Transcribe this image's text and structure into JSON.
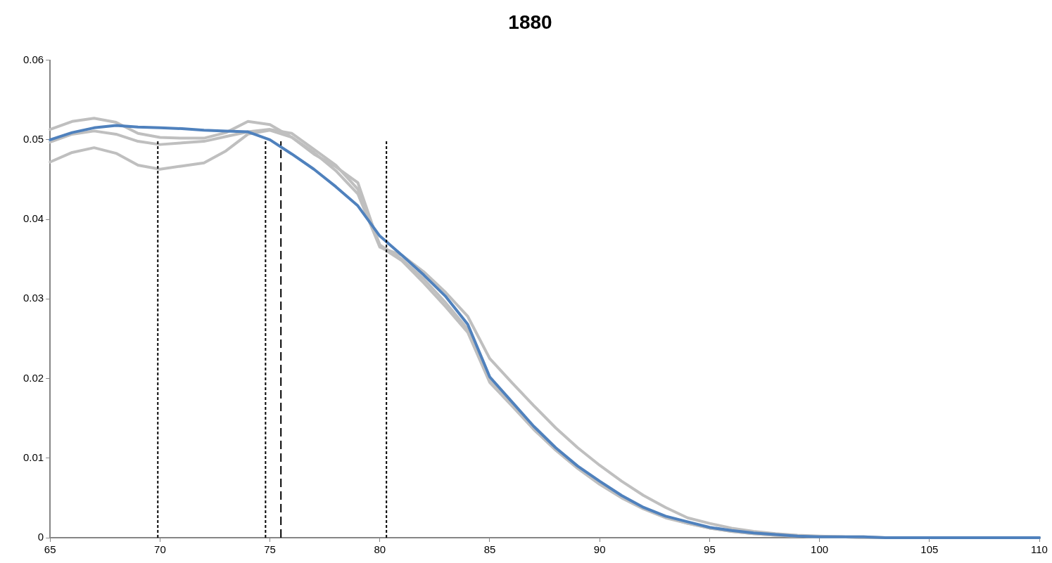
{
  "chart_data": {
    "type": "line",
    "title": "1880",
    "x": [
      65,
      66,
      67,
      68,
      69,
      70,
      71,
      72,
      73,
      74,
      75,
      76,
      77,
      78,
      79,
      80,
      81,
      82,
      83,
      84,
      85,
      86,
      87,
      88,
      89,
      90,
      91,
      92,
      93,
      94,
      95,
      96,
      97,
      98,
      99,
      100,
      101,
      102,
      103,
      104,
      105,
      106,
      107,
      108,
      109,
      110
    ],
    "series": [
      {
        "color": "#bfbfbf",
        "values": [
          0.0513,
          0.0523,
          0.0527,
          0.0522,
          0.0508,
          0.0503,
          0.0502,
          0.0502,
          0.0509,
          0.0523,
          0.0519,
          0.0503,
          0.0484,
          0.0461,
          0.0432,
          0.0365,
          0.0355,
          0.0334,
          0.0308,
          0.0278,
          0.0225,
          0.0195,
          0.0166,
          0.0138,
          0.0113,
          0.0091,
          0.0071,
          0.0053,
          0.0038,
          0.0025,
          0.0018,
          0.0012,
          0.0008,
          0.0005,
          0.0003,
          0.0002,
          0.0001,
          0.0001,
          0,
          0,
          0,
          0,
          0,
          0,
          0,
          0
        ]
      },
      {
        "color": "#bfbfbf",
        "values": [
          0.0497,
          0.0507,
          0.0511,
          0.0507,
          0.0498,
          0.0494,
          0.0496,
          0.0498,
          0.0504,
          0.051,
          0.0513,
          0.0508,
          0.0488,
          0.0468,
          0.0438,
          0.0368,
          0.035,
          0.0325,
          0.0295,
          0.0262,
          0.0197,
          0.0168,
          0.0138,
          0.0111,
          0.0088,
          0.0068,
          0.0051,
          0.0037,
          0.0026,
          0.0018,
          0.0012,
          0.0008,
          0.0005,
          0.0003,
          0.0002,
          0.0001,
          0.0001,
          0,
          0,
          0,
          0,
          0,
          0,
          0,
          0,
          0
        ]
      },
      {
        "color": "#bfbfbf",
        "values": [
          0.0472,
          0.0484,
          0.049,
          0.0483,
          0.0468,
          0.0463,
          0.0467,
          0.0471,
          0.0486,
          0.0507,
          0.0512,
          0.0503,
          0.0482,
          0.0466,
          0.0446,
          0.0366,
          0.0348,
          0.032,
          0.029,
          0.0258,
          0.0195,
          0.0166,
          0.0136,
          0.011,
          0.0087,
          0.0067,
          0.005,
          0.0036,
          0.0025,
          0.0018,
          0.0012,
          0.0008,
          0.0005,
          0.0003,
          0.0002,
          0.0001,
          0.0001,
          0,
          0,
          0,
          0,
          0,
          0,
          0,
          0,
          0
        ]
      },
      {
        "color": "#4f81bd",
        "values": [
          0.05,
          0.0509,
          0.0515,
          0.0518,
          0.0516,
          0.0515,
          0.0514,
          0.0512,
          0.0511,
          0.051,
          0.05,
          0.0482,
          0.0463,
          0.0441,
          0.0417,
          0.0379,
          0.0355,
          0.033,
          0.0303,
          0.0268,
          0.0202,
          0.0171,
          0.014,
          0.0113,
          0.009,
          0.0071,
          0.0053,
          0.0038,
          0.0027,
          0.002,
          0.0013,
          0.0009,
          0.0006,
          0.0004,
          0.0002,
          0.0001,
          0.0001,
          0.0001,
          0,
          0,
          0,
          0,
          0,
          0,
          0,
          0
        ]
      }
    ],
    "xlim": [
      65,
      110
    ],
    "xticks": [
      65,
      70,
      75,
      80,
      85,
      90,
      95,
      100,
      105,
      110
    ],
    "ylim": [
      0,
      0.06
    ],
    "yticks": [
      0,
      0.01,
      0.02,
      0.03,
      0.04,
      0.05,
      0.06
    ],
    "ref_lines": [
      {
        "axis": "x",
        "value": 69.9,
        "color": "#000000",
        "line_style": "dotted"
      },
      {
        "axis": "x",
        "value": 74.8,
        "color": "#000000",
        "line_style": "dotted"
      },
      {
        "axis": "x",
        "value": 75.5,
        "color": "#000000",
        "line_style": "dashed"
      },
      {
        "axis": "x",
        "value": 80.3,
        "color": "#000000",
        "line_style": "dotted"
      }
    ],
    "grid": false,
    "legend": false,
    "marker": "none",
    "line_style": "solid"
  }
}
